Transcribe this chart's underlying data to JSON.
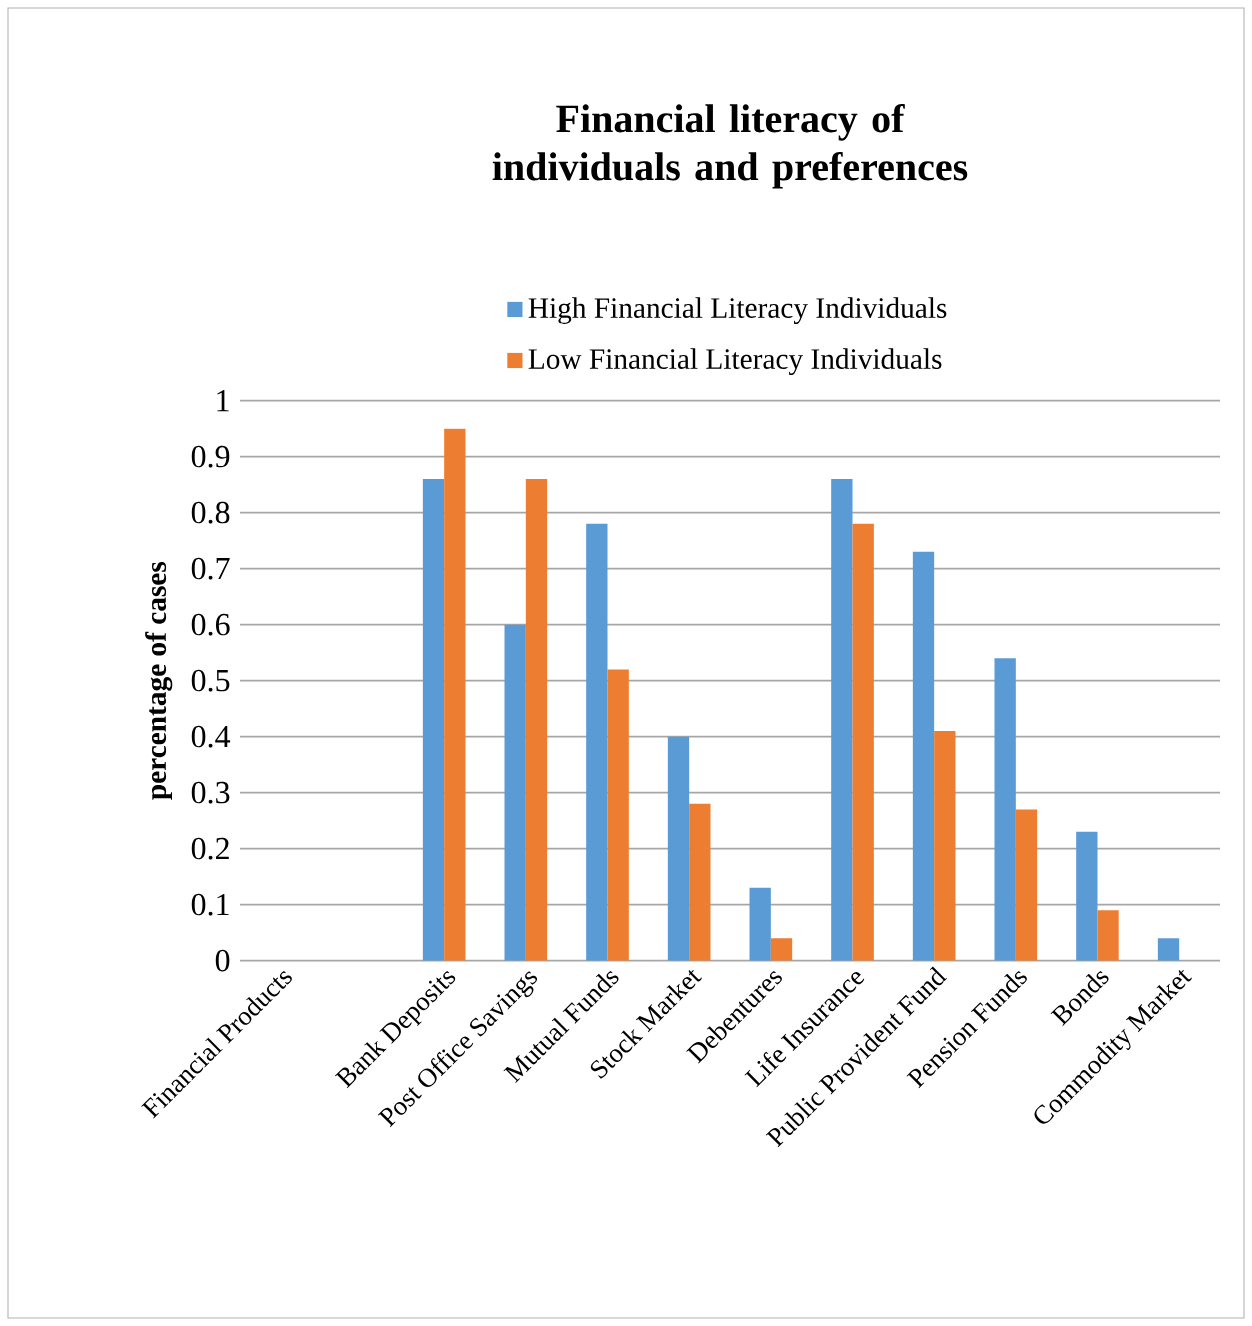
{
  "chart_data": {
    "type": "bar",
    "title": "Financial literacy of individuals and preferences",
    "ylabel": "percentage of cases",
    "categories": [
      "Financial Products",
      null,
      "Bank Deposits",
      "Post Office Savings",
      "Mutual Funds",
      "Stock Market",
      "Debentures",
      "Life Insurance",
      "Public Provident Fund",
      "Pension Funds",
      "Bonds",
      "Commodity Market"
    ],
    "series": [
      {
        "name": "High Financial Literacy Individuals",
        "color": "#5b9bd5",
        "values": [
          null,
          null,
          0.86,
          0.6,
          0.78,
          0.4,
          0.13,
          0.86,
          0.73,
          0.54,
          0.23,
          0.04
        ]
      },
      {
        "name": "Low Financial Literacy Individuals",
        "color": "#ed7d31",
        "values": [
          null,
          null,
          0.95,
          0.86,
          0.52,
          0.28,
          0.04,
          0.78,
          0.41,
          0.27,
          0.09,
          null
        ]
      }
    ],
    "ylim": [
      0,
      1
    ],
    "yticks": [
      0,
      0.1,
      0.2,
      0.3,
      0.4,
      0.5,
      0.6,
      0.7,
      0.8,
      0.9,
      1
    ],
    "grid": "y",
    "legend": "top"
  }
}
